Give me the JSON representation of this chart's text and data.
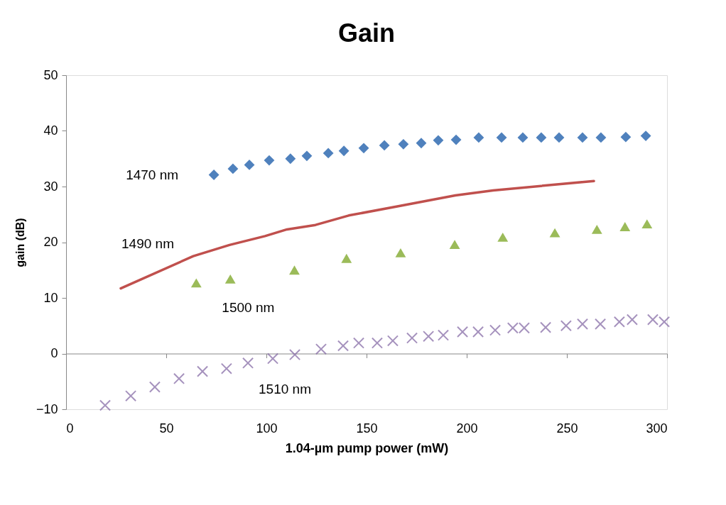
{
  "chart_data": {
    "type": "scatter",
    "title": "Gain",
    "xlabel": "1.04-µm pump power (mW)",
    "ylabel": "gain (dB)",
    "xlim": [
      0,
      300
    ],
    "ylim": [
      -10,
      50
    ],
    "xticks": [
      0,
      50,
      100,
      150,
      200,
      250,
      300
    ],
    "yticks": [
      -10,
      0,
      10,
      20,
      30,
      40,
      50
    ],
    "series": [
      {
        "name": "1470 nm",
        "marker": "diamond",
        "color": "#4f81bd",
        "x": [
          73.8,
          83.3,
          91.5,
          101.4,
          112,
          120.2,
          130.9,
          138.7,
          148.6,
          158.9,
          168.4,
          177.3,
          185.8,
          194.7,
          206,
          217.4,
          228,
          237.2,
          246.1,
          257.8,
          267,
          279.4,
          289.4
        ],
        "values": [
          32.1,
          33.2,
          33.9,
          34.7,
          35.0,
          35.5,
          36.0,
          36.4,
          36.9,
          37.4,
          37.6,
          37.8,
          38.3,
          38.4,
          38.8,
          38.8,
          38.8,
          38.8,
          38.8,
          38.8,
          38.8,
          38.9,
          39.1
        ]
      },
      {
        "name": "1490 nm",
        "type": "line",
        "marker": "none",
        "line_style": "solid",
        "color": "#c0504d",
        "x": [
          27.3,
          63.5,
          81.6,
          99.3,
          110.3,
          124.5,
          141.1,
          166.3,
          194.3,
          213.1,
          263.5
        ],
        "values": [
          11.7,
          17.5,
          19.5,
          21.1,
          22.3,
          23.1,
          24.8,
          26.5,
          28.4,
          29.3,
          31.0
        ]
      },
      {
        "name": "1500 nm",
        "marker": "triangle",
        "color": "#9bbb59",
        "x": [
          65,
          82,
          114,
          140,
          167,
          194,
          218,
          244,
          265,
          279,
          290
        ],
        "values": [
          12.7,
          13.4,
          15.0,
          17.1,
          18.1,
          19.6,
          20.9,
          21.7,
          22.3,
          22.8,
          23.3
        ]
      },
      {
        "name": "1510 nm",
        "marker": "cross",
        "color": "#8064a2",
        "x": [
          19.5,
          32.3,
          44.3,
          56.4,
          68.1,
          80.1,
          90.8,
          103.2,
          114.2,
          127.3,
          138.3,
          146.1,
          155.3,
          163.1,
          172.7,
          180.9,
          188.3,
          197.9,
          205.7,
          214.2,
          223.0,
          228.7,
          239.4,
          249.6,
          257.8,
          266.7,
          276.2,
          282.6,
          292.9,
          298.6
        ],
        "values": [
          -9.3,
          -7.6,
          -6.0,
          -4.5,
          -3.2,
          -2.7,
          -1.7,
          -0.9,
          -0.2,
          0.8,
          1.4,
          1.9,
          1.9,
          2.3,
          2.8,
          3.1,
          3.3,
          3.9,
          3.9,
          4.2,
          4.6,
          4.6,
          4.7,
          5.0,
          5.3,
          5.3,
          5.7,
          6.1,
          6.1,
          5.7
        ]
      }
    ]
  }
}
